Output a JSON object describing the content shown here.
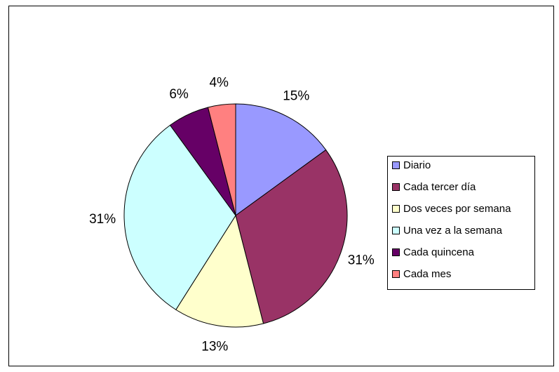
{
  "chart_data": {
    "type": "pie",
    "categories": [
      "Diario",
      "Cada tercer día",
      "Dos veces por semana",
      "Una vez a la semana",
      "Cada quincena",
      "Cada mes"
    ],
    "values": [
      15,
      31,
      13,
      31,
      6,
      4
    ],
    "value_labels": [
      "15%",
      "31%",
      "13%",
      "31%",
      "6%",
      "4%"
    ],
    "colors": [
      "#9999ff",
      "#993366",
      "#ffffcc",
      "#ccffff",
      "#660066",
      "#ff8080"
    ],
    "legend": "right"
  }
}
